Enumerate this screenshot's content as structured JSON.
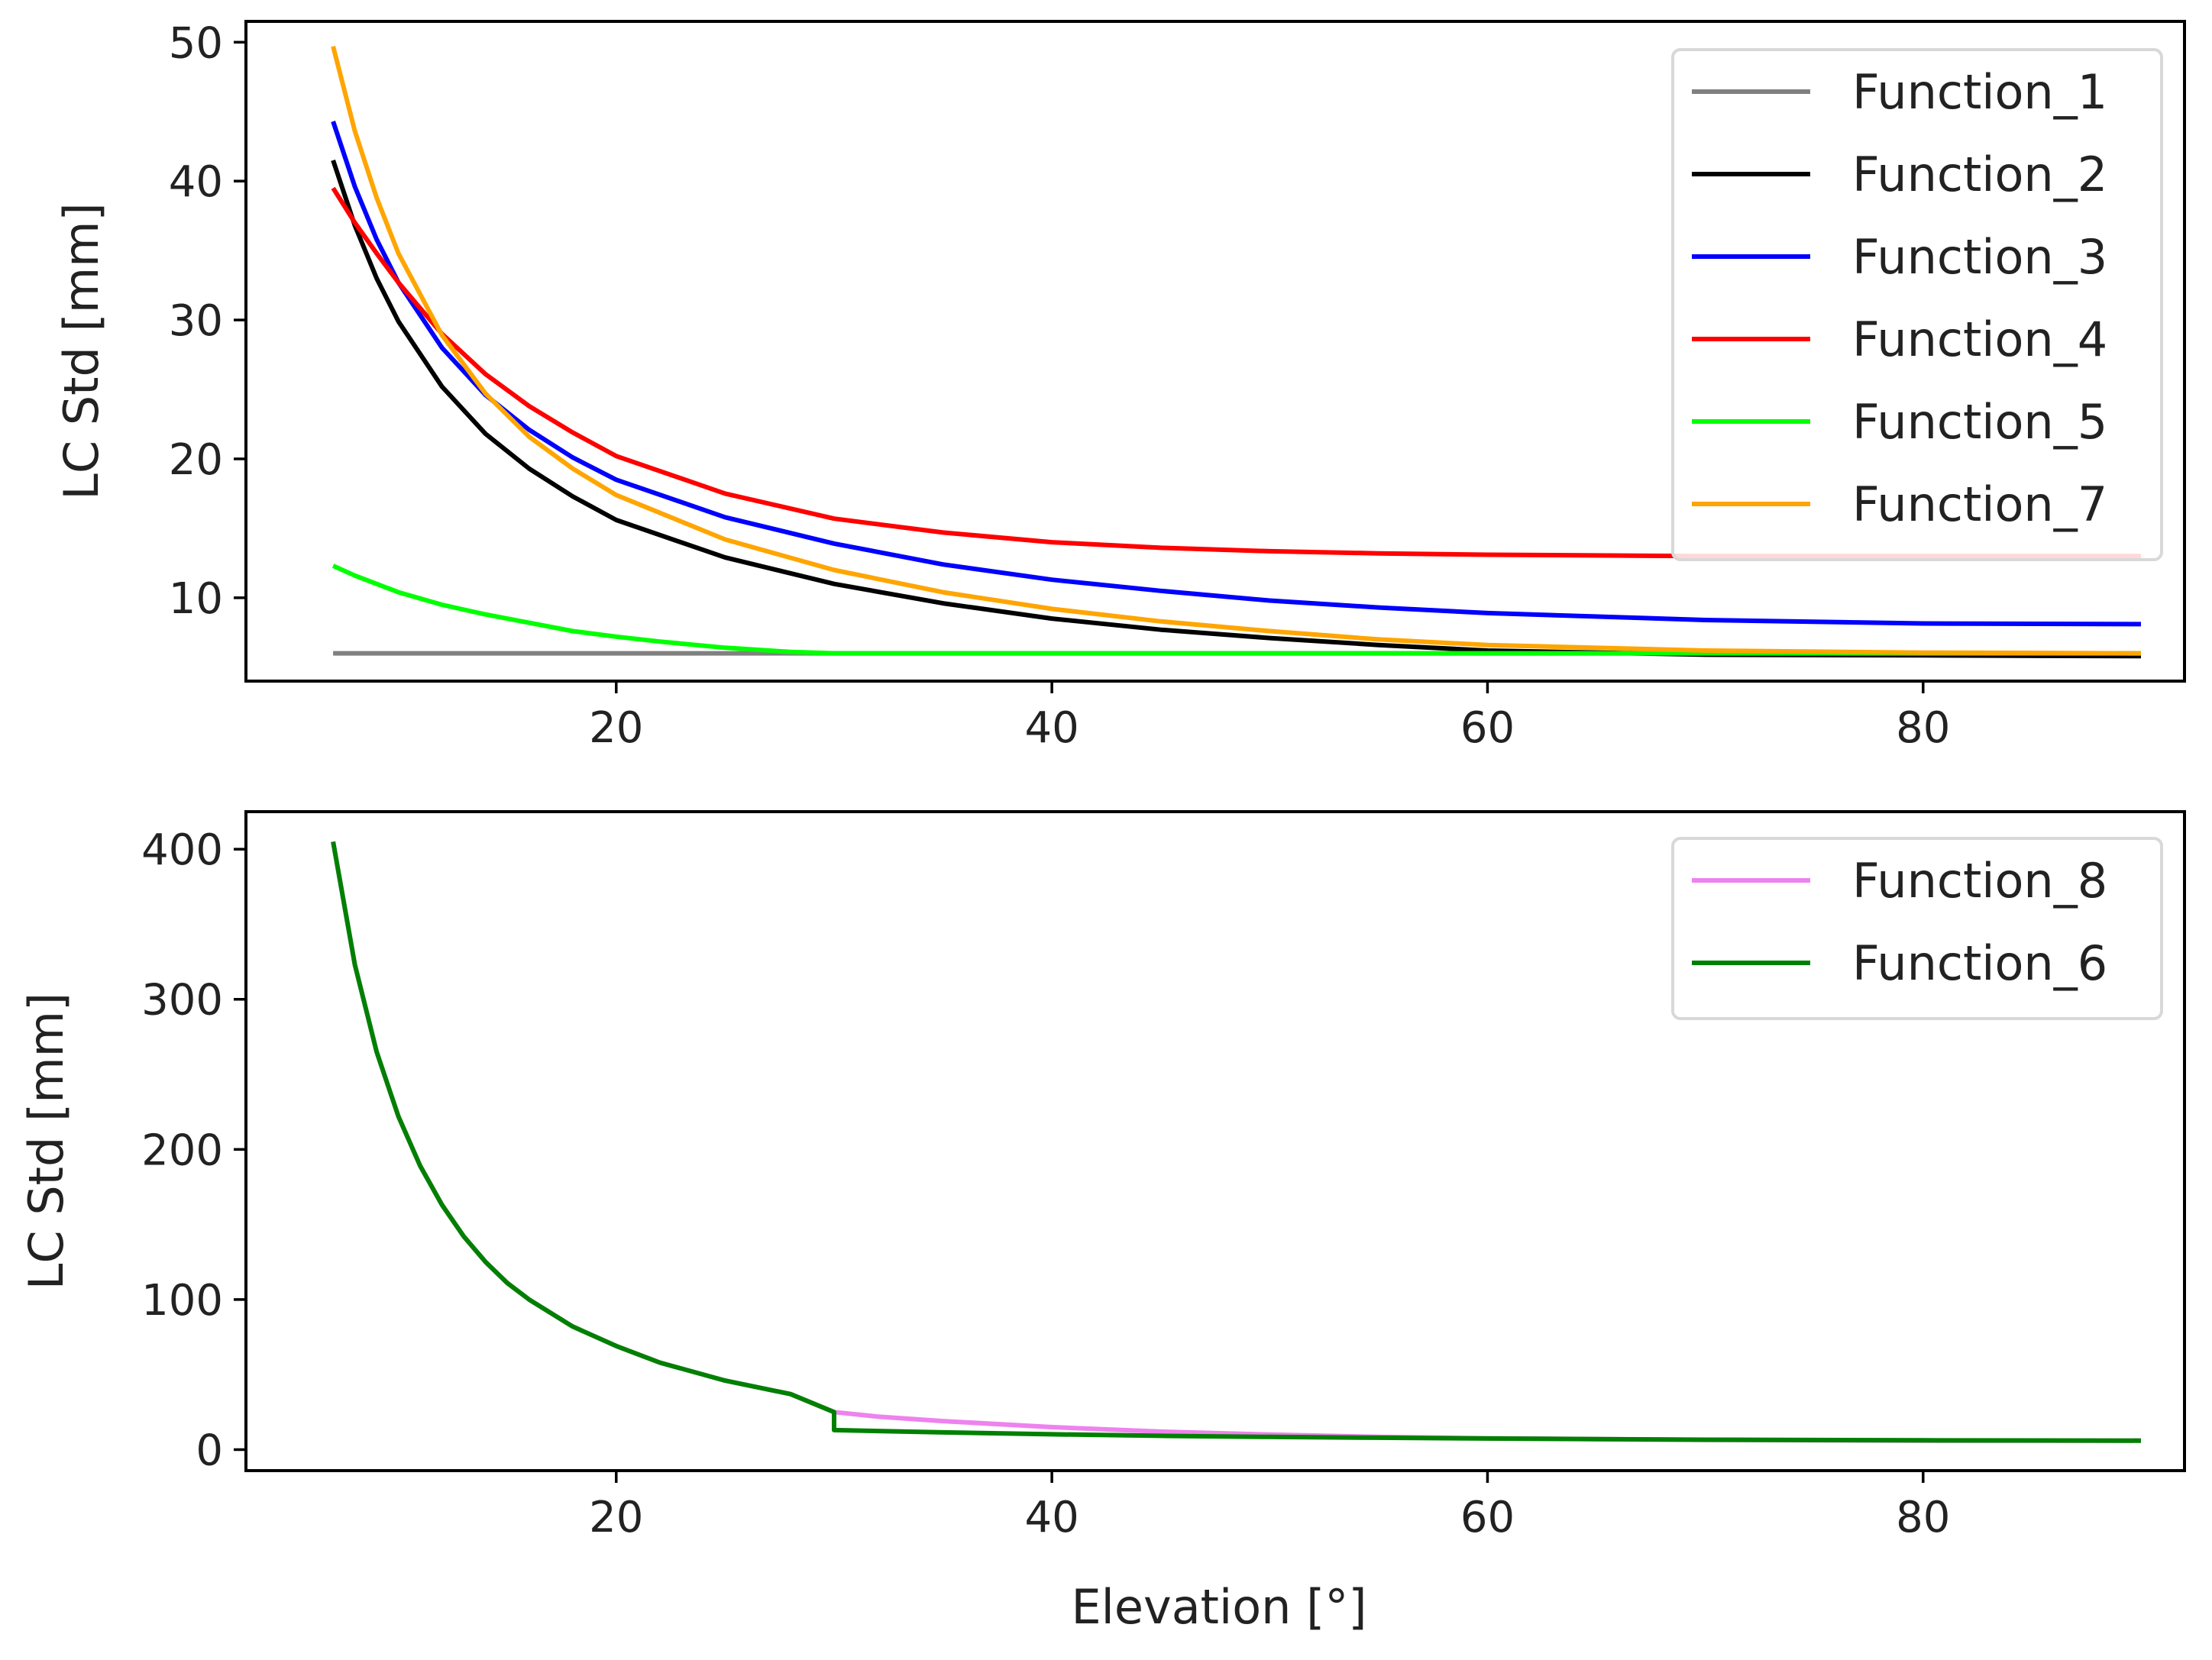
{
  "chart_data": [
    {
      "type": "line",
      "title": "",
      "xlabel": "",
      "ylabel": "LC Std [mm]",
      "xlim": [
        3,
        92
      ],
      "ylim": [
        4,
        51.5
      ],
      "xticks": [
        20,
        40,
        60,
        80
      ],
      "yticks": [
        10,
        20,
        30,
        40,
        50
      ],
      "grid": false,
      "legend_position": "upper right",
      "series": [
        {
          "name": "Function_1",
          "color": "#808080",
          "x": [
            7,
            10,
            20,
            30,
            40,
            50,
            60,
            70,
            80,
            90
          ],
          "y": [
            6.0,
            6.0,
            6.0,
            6.0,
            6.0,
            6.0,
            6.0,
            6.0,
            6.0,
            6.0
          ]
        },
        {
          "name": "Function_2",
          "color": "#000000",
          "x": [
            7,
            8,
            9,
            10,
            12,
            14,
            16,
            18,
            20,
            25,
            30,
            35,
            40,
            45,
            50,
            55,
            60,
            70,
            80,
            90
          ],
          "y": [
            41.5,
            36.8,
            33.0,
            29.9,
            25.2,
            21.8,
            19.3,
            17.3,
            15.6,
            12.9,
            11.0,
            9.6,
            8.5,
            7.7,
            7.1,
            6.6,
            6.2,
            5.9,
            5.85,
            5.8
          ]
        },
        {
          "name": "Function_3",
          "color": "#0000ff",
          "x": [
            7,
            8,
            9,
            10,
            12,
            14,
            16,
            18,
            20,
            25,
            30,
            35,
            40,
            45,
            50,
            55,
            60,
            70,
            80,
            90
          ],
          "y": [
            44.3,
            39.6,
            35.8,
            32.7,
            28.0,
            24.6,
            22.1,
            20.1,
            18.5,
            15.8,
            13.9,
            12.4,
            11.3,
            10.5,
            9.8,
            9.3,
            8.9,
            8.4,
            8.15,
            8.1
          ]
        },
        {
          "name": "Function_4",
          "color": "#ff0000",
          "x": [
            7,
            8,
            9,
            10,
            12,
            14,
            16,
            18,
            20,
            25,
            30,
            35,
            40,
            45,
            50,
            55,
            60,
            70,
            80,
            90
          ],
          "y": [
            39.5,
            37.0,
            34.8,
            32.7,
            29.0,
            26.1,
            23.8,
            21.9,
            20.2,
            17.5,
            15.7,
            14.7,
            14.0,
            13.6,
            13.35,
            13.2,
            13.1,
            13.0,
            13.0,
            13.0
          ]
        },
        {
          "name": "Function_5",
          "color": "#00ff00",
          "x": [
            7,
            8,
            9,
            10,
            12,
            14,
            16,
            18,
            20,
            22,
            25,
            28,
            30,
            40,
            50,
            60,
            70,
            80,
            90
          ],
          "y": [
            12.3,
            11.6,
            11.0,
            10.4,
            9.5,
            8.8,
            8.2,
            7.6,
            7.2,
            6.85,
            6.4,
            6.1,
            6.0,
            6.0,
            6.0,
            6.0,
            6.0,
            6.0,
            6.0
          ]
        },
        {
          "name": "Function_7",
          "color": "#ffa500",
          "x": [
            7,
            8,
            9,
            10,
            12,
            14,
            16,
            18,
            20,
            25,
            30,
            35,
            40,
            45,
            50,
            55,
            60,
            70,
            80,
            90
          ],
          "y": [
            49.7,
            43.6,
            38.8,
            34.8,
            28.9,
            24.7,
            21.6,
            19.3,
            17.4,
            14.2,
            12.0,
            10.4,
            9.2,
            8.3,
            7.6,
            7.0,
            6.6,
            6.2,
            6.05,
            6.0
          ]
        }
      ]
    },
    {
      "type": "line",
      "title": "",
      "xlabel": "Elevation [°]",
      "ylabel": "LC Std [mm]",
      "xlim": [
        3,
        92
      ],
      "ylim": [
        -14,
        425
      ],
      "xticks": [
        20,
        40,
        60,
        80
      ],
      "yticks": [
        0,
        100,
        200,
        300,
        400
      ],
      "grid": false,
      "legend_position": "upper right",
      "series": [
        {
          "name": "Function_8",
          "color": "#ee82ee",
          "x": [
            7,
            8,
            9,
            10,
            11,
            12,
            13,
            14,
            15,
            16,
            18,
            20,
            22,
            25,
            28,
            30,
            32,
            35,
            40,
            45,
            50,
            55,
            60,
            70,
            80,
            90
          ],
          "y": [
            405,
            323,
            265,
            222,
            189,
            163,
            142,
            125,
            111,
            100,
            82,
            69,
            58,
            46,
            37,
            25,
            22,
            19,
            15,
            12,
            10,
            8.5,
            7.5,
            6.5,
            6.0,
            6.0
          ]
        },
        {
          "name": "Function_6",
          "color": "#008000",
          "x": [
            7,
            8,
            9,
            10,
            11,
            12,
            13,
            14,
            15,
            16,
            18,
            20,
            22,
            25,
            28,
            30,
            30,
            35,
            40,
            45,
            50,
            55,
            60,
            70,
            80,
            90
          ],
          "y": [
            405,
            323,
            265,
            222,
            189,
            163,
            142,
            125,
            111,
            100,
            82,
            69,
            58,
            46,
            37,
            25,
            13,
            11.5,
            10.2,
            9.2,
            8.5,
            7.9,
            7.4,
            6.6,
            6.2,
            6.0
          ]
        }
      ]
    }
  ]
}
